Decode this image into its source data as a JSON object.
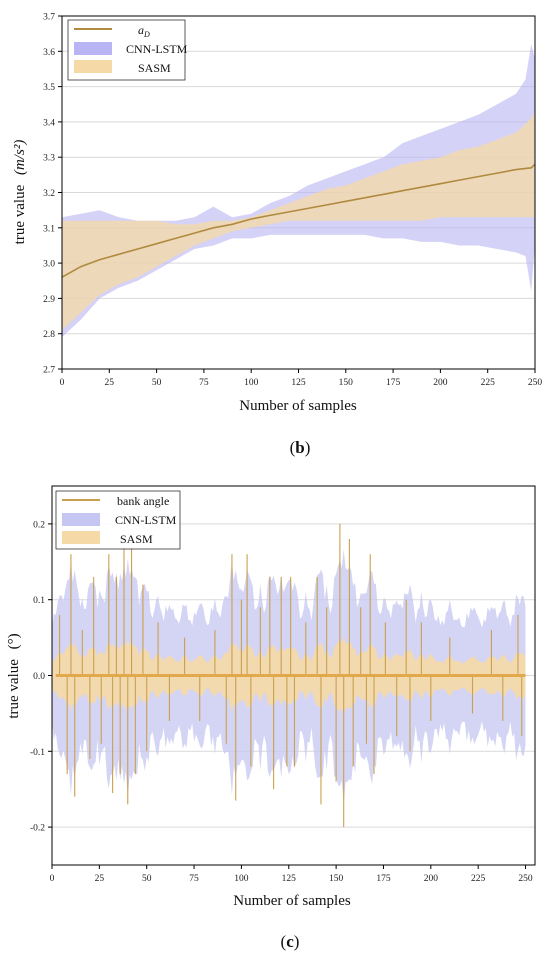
{
  "chart_data": [
    {
      "type": "area",
      "panel_label": "(b)",
      "panel_letter": "b",
      "xlabel": "Number of samples",
      "ylabel_main": "true value",
      "ylabel_unit": "(m/s²)",
      "xlim": [
        0,
        250
      ],
      "ylim": [
        2.7,
        3.7
      ],
      "xticks": [
        "0",
        "25",
        "50",
        "75",
        "100",
        "125",
        "150",
        "175",
        "200",
        "225",
        "250"
      ],
      "yticks": [
        "2.7",
        "2.8",
        "2.9",
        "3.0",
        "3.1",
        "3.2",
        "3.3",
        "3.4",
        "3.5",
        "3.6",
        "3.7"
      ],
      "grid": true,
      "legend_position": "top-left",
      "legend": [
        "a_D",
        "CNN-LSTM",
        "SASM"
      ],
      "colors": {
        "line": "#b08a3e",
        "cnn": "#b9b4f4",
        "sasm": "#f5d9a6"
      },
      "series": [
        {
          "name": "a_D",
          "x": [
            0,
            10,
            20,
            30,
            40,
            50,
            60,
            70,
            80,
            90,
            100,
            110,
            120,
            130,
            140,
            150,
            160,
            170,
            180,
            190,
            200,
            210,
            220,
            230,
            240,
            248,
            250
          ],
          "values": [
            2.96,
            2.99,
            3.01,
            3.025,
            3.04,
            3.055,
            3.07,
            3.085,
            3.1,
            3.11,
            3.125,
            3.135,
            3.145,
            3.155,
            3.165,
            3.175,
            3.185,
            3.195,
            3.205,
            3.215,
            3.225,
            3.235,
            3.245,
            3.255,
            3.265,
            3.27,
            3.28
          ]
        },
        {
          "name": "CNN-LSTM",
          "x": [
            0,
            10,
            20,
            30,
            40,
            50,
            60,
            70,
            80,
            90,
            100,
            110,
            120,
            130,
            140,
            150,
            160,
            170,
            180,
            190,
            200,
            210,
            220,
            230,
            240,
            245,
            248,
            250
          ],
          "upper": [
            3.13,
            3.14,
            3.15,
            3.13,
            3.12,
            3.12,
            3.12,
            3.13,
            3.16,
            3.13,
            3.14,
            3.17,
            3.19,
            3.22,
            3.24,
            3.26,
            3.28,
            3.3,
            3.34,
            3.36,
            3.38,
            3.4,
            3.42,
            3.45,
            3.48,
            3.52,
            3.62,
            3.58
          ],
          "lower": [
            2.79,
            2.84,
            2.9,
            2.93,
            2.95,
            2.98,
            3.01,
            3.04,
            3.05,
            3.07,
            3.07,
            3.08,
            3.08,
            3.08,
            3.08,
            3.08,
            3.08,
            3.07,
            3.07,
            3.06,
            3.06,
            3.05,
            3.05,
            3.04,
            3.03,
            3.02,
            2.92,
            3.05
          ]
        },
        {
          "name": "SASM",
          "x": [
            0,
            10,
            20,
            30,
            40,
            50,
            60,
            70,
            80,
            90,
            100,
            110,
            120,
            130,
            140,
            150,
            160,
            170,
            180,
            190,
            200,
            210,
            220,
            230,
            240,
            248,
            250
          ],
          "upper": [
            3.12,
            3.12,
            3.12,
            3.12,
            3.12,
            3.12,
            3.11,
            3.11,
            3.12,
            3.12,
            3.13,
            3.15,
            3.17,
            3.19,
            3.21,
            3.22,
            3.24,
            3.26,
            3.28,
            3.29,
            3.3,
            3.32,
            3.33,
            3.35,
            3.37,
            3.41,
            3.43
          ],
          "lower": [
            2.81,
            2.86,
            2.91,
            2.94,
            2.96,
            2.99,
            3.02,
            3.05,
            3.07,
            3.09,
            3.1,
            3.11,
            3.12,
            3.12,
            3.12,
            3.12,
            3.12,
            3.12,
            3.12,
            3.12,
            3.13,
            3.13,
            3.13,
            3.13,
            3.13,
            3.13,
            3.13
          ]
        }
      ]
    },
    {
      "type": "area",
      "panel_label": "(c)",
      "panel_letter": "c",
      "xlabel": "Number of samples",
      "ylabel_main": "true value",
      "ylabel_unit": "(°)",
      "xlim": [
        0,
        255
      ],
      "ylim": [
        -0.25,
        0.25
      ],
      "xticks": [
        "0",
        "25",
        "50",
        "75",
        "100",
        "125",
        "150",
        "175",
        "200",
        "225",
        "250"
      ],
      "yticks": [
        "-0.2",
        "-0.1",
        "0.0",
        "0.1",
        "0.2"
      ],
      "grid": true,
      "legend_position": "top-left",
      "legend": [
        "bank angle",
        "CNN-LSTM",
        "SASM"
      ],
      "colors": {
        "line": "#c9a04e",
        "cnn": "#c5c7f2",
        "sasm": "#f5d9a6"
      },
      "spikes": [
        {
          "x": 4,
          "v": 0.08
        },
        {
          "x": 8,
          "v": -0.13
        },
        {
          "x": 10,
          "v": 0.16
        },
        {
          "x": 12,
          "v": -0.16
        },
        {
          "x": 16,
          "v": 0.06
        },
        {
          "x": 20,
          "v": -0.11
        },
        {
          "x": 22,
          "v": 0.13
        },
        {
          "x": 26,
          "v": -0.09
        },
        {
          "x": 30,
          "v": 0.16
        },
        {
          "x": 32,
          "v": -0.155
        },
        {
          "x": 34,
          "v": 0.13
        },
        {
          "x": 36,
          "v": -0.13
        },
        {
          "x": 38,
          "v": 0.17
        },
        {
          "x": 40,
          "v": -0.17
        },
        {
          "x": 42,
          "v": 0.17
        },
        {
          "x": 44,
          "v": -0.13
        },
        {
          "x": 48,
          "v": 0.12
        },
        {
          "x": 50,
          "v": -0.1
        },
        {
          "x": 56,
          "v": 0.07
        },
        {
          "x": 62,
          "v": -0.06
        },
        {
          "x": 70,
          "v": 0.05
        },
        {
          "x": 78,
          "v": -0.06
        },
        {
          "x": 86,
          "v": 0.06
        },
        {
          "x": 92,
          "v": -0.09
        },
        {
          "x": 95,
          "v": 0.16
        },
        {
          "x": 97,
          "v": -0.165
        },
        {
          "x": 100,
          "v": 0.1
        },
        {
          "x": 103,
          "v": 0.16
        },
        {
          "x": 105,
          "v": -0.12
        },
        {
          "x": 110,
          "v": 0.09
        },
        {
          "x": 115,
          "v": 0.13
        },
        {
          "x": 117,
          "v": -0.15
        },
        {
          "x": 121,
          "v": 0.13
        },
        {
          "x": 124,
          "v": -0.12
        },
        {
          "x": 126,
          "v": 0.13
        },
        {
          "x": 128,
          "v": -0.12
        },
        {
          "x": 134,
          "v": 0.07
        },
        {
          "x": 140,
          "v": 0.13
        },
        {
          "x": 142,
          "v": -0.17
        },
        {
          "x": 145,
          "v": 0.09
        },
        {
          "x": 150,
          "v": -0.14
        },
        {
          "x": 152,
          "v": 0.2
        },
        {
          "x": 154,
          "v": -0.2
        },
        {
          "x": 157,
          "v": 0.18
        },
        {
          "x": 159,
          "v": -0.12
        },
        {
          "x": 163,
          "v": 0.09
        },
        {
          "x": 166,
          "v": -0.09
        },
        {
          "x": 168,
          "v": 0.16
        },
        {
          "x": 170,
          "v": -0.13
        },
        {
          "x": 176,
          "v": 0.07
        },
        {
          "x": 182,
          "v": -0.08
        },
        {
          "x": 187,
          "v": 0.1
        },
        {
          "x": 189,
          "v": -0.1
        },
        {
          "x": 195,
          "v": 0.07
        },
        {
          "x": 200,
          "v": -0.06
        },
        {
          "x": 210,
          "v": 0.05
        },
        {
          "x": 222,
          "v": -0.05
        },
        {
          "x": 232,
          "v": 0.06
        },
        {
          "x": 238,
          "v": -0.06
        },
        {
          "x": 246,
          "v": 0.08
        },
        {
          "x": 248,
          "v": -0.08
        }
      ]
    }
  ]
}
